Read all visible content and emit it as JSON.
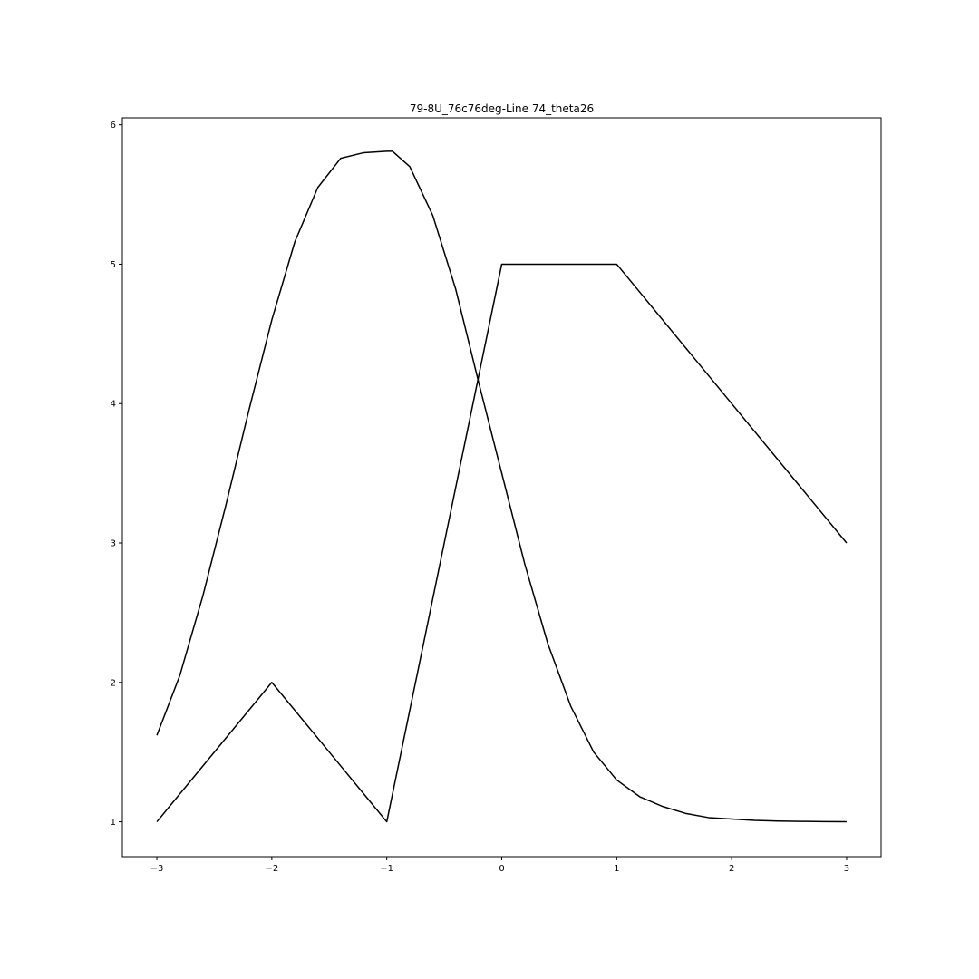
{
  "chart_data": {
    "type": "line",
    "title": "79-8U_76c76deg-Line 74_theta26",
    "xlabel": "",
    "ylabel": "",
    "xlim": [
      -3.3,
      3.3
    ],
    "ylim": [
      0.75,
      6.05
    ],
    "xticks": [
      -3,
      -2,
      -1,
      0,
      1,
      2,
      3
    ],
    "xtick_labels": [
      "−3",
      "−2",
      "−1",
      "0",
      "1",
      "2",
      "3"
    ],
    "yticks": [
      1,
      2,
      3,
      4,
      5,
      6
    ],
    "ytick_labels": [
      "1",
      "2",
      "3",
      "4",
      "5",
      "6"
    ],
    "grid": false,
    "legend": "none",
    "line_color": "#000000",
    "series": [
      {
        "x": [
          -3.0,
          -2.8,
          -2.6,
          -2.4,
          -2.2,
          -2.0,
          -1.8,
          -1.6,
          -1.4,
          -1.2,
          -1.0,
          -0.95,
          -0.8,
          -0.6,
          -0.4,
          -0.2,
          0.0,
          0.2,
          0.4,
          0.6,
          0.8,
          1.0,
          1.2,
          1.4,
          1.6,
          1.8,
          2.0,
          2.2,
          2.4,
          2.6,
          2.8,
          3.0
        ],
        "y": [
          1.62,
          2.05,
          2.62,
          3.27,
          3.95,
          4.6,
          5.16,
          5.55,
          5.76,
          5.8,
          5.81,
          5.81,
          5.7,
          5.35,
          4.82,
          4.15,
          3.5,
          2.85,
          2.28,
          1.83,
          1.5,
          1.3,
          1.18,
          1.11,
          1.06,
          1.03,
          1.02,
          1.01,
          1.005,
          1.003,
          1.001,
          1.0
        ]
      },
      {
        "x": [
          -3,
          -2,
          -1,
          0,
          1,
          3
        ],
        "y": [
          1,
          2,
          1,
          5,
          5,
          3
        ]
      }
    ]
  }
}
